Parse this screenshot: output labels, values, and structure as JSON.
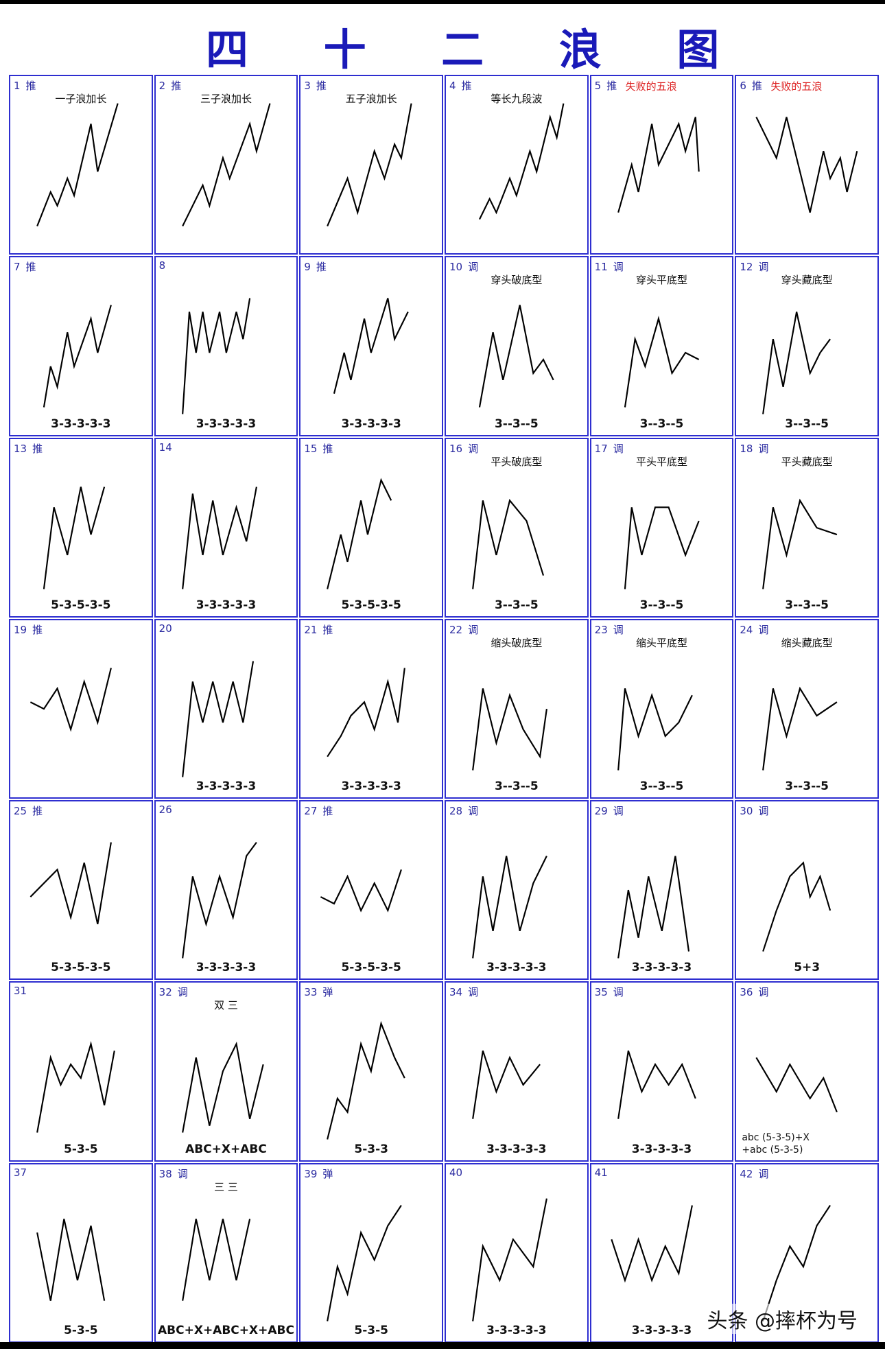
{
  "title": "四 十 二 浪 图",
  "watermark": "头条 @摔杯为号",
  "cells": [
    {
      "num": "1",
      "type": "推",
      "name": "一子浪加长",
      "cap": ""
    },
    {
      "num": "2",
      "type": "推",
      "name": "三子浪加长",
      "cap": ""
    },
    {
      "num": "3",
      "type": "推",
      "name": "五子浪加长",
      "cap": ""
    },
    {
      "num": "4",
      "type": "推",
      "name": "等长九段波",
      "cap": ""
    },
    {
      "num": "5",
      "type": "推",
      "name": "失败的五浪",
      "cap": ""
    },
    {
      "num": "6",
      "type": "推",
      "name": "失败的五浪",
      "cap": ""
    },
    {
      "num": "7",
      "type": "推",
      "name": "",
      "cap": "3-3-3-3-3"
    },
    {
      "num": "8",
      "type": "",
      "name": "",
      "cap": "3-3-3-3-3"
    },
    {
      "num": "9",
      "type": "推",
      "name": "",
      "cap": "3-3-3-3-3"
    },
    {
      "num": "10",
      "type": "调",
      "name": "穿头破底型",
      "cap": "3--3--5"
    },
    {
      "num": "11",
      "type": "调",
      "name": "穿头平底型",
      "cap": "3--3--5"
    },
    {
      "num": "12",
      "type": "调",
      "name": "穿头藏底型",
      "cap": "3--3--5"
    },
    {
      "num": "13",
      "type": "推",
      "name": "",
      "cap": "5-3-5-3-5"
    },
    {
      "num": "14",
      "type": "",
      "name": "",
      "cap": "3-3-3-3-3"
    },
    {
      "num": "15",
      "type": "推",
      "name": "",
      "cap": "5-3-5-3-5"
    },
    {
      "num": "16",
      "type": "调",
      "name": "平头破底型",
      "cap": "3--3--5"
    },
    {
      "num": "17",
      "type": "调",
      "name": "平头平底型",
      "cap": "3--3--5"
    },
    {
      "num": "18",
      "type": "调",
      "name": "平头藏底型",
      "cap": "3--3--5"
    },
    {
      "num": "19",
      "type": "推",
      "name": "",
      "cap": ""
    },
    {
      "num": "20",
      "type": "",
      "name": "",
      "cap": "3-3-3-3-3"
    },
    {
      "num": "21",
      "type": "推",
      "name": "",
      "cap": "3-3-3-3-3"
    },
    {
      "num": "22",
      "type": "调",
      "name": "缩头破底型",
      "cap": "3--3--5"
    },
    {
      "num": "23",
      "type": "调",
      "name": "缩头平底型",
      "cap": "3--3--5"
    },
    {
      "num": "24",
      "type": "调",
      "name": "缩头藏底型",
      "cap": "3--3--5"
    },
    {
      "num": "25",
      "type": "推",
      "name": "",
      "cap": "5-3-5-3-5"
    },
    {
      "num": "26",
      "type": "",
      "name": "",
      "cap": "3-3-3-3-3"
    },
    {
      "num": "27",
      "type": "推",
      "name": "",
      "cap": "5-3-5-3-5"
    },
    {
      "num": "28",
      "type": "调",
      "name": "",
      "cap": "3-3-3-3-3"
    },
    {
      "num": "29",
      "type": "调",
      "name": "",
      "cap": "3-3-3-3-3"
    },
    {
      "num": "30",
      "type": "调",
      "name": "",
      "cap": "5+3"
    },
    {
      "num": "31",
      "type": "",
      "name": "",
      "cap": "5-3-5"
    },
    {
      "num": "32",
      "type": "调",
      "name": "双 三",
      "cap": "ABC+X+ABC"
    },
    {
      "num": "33",
      "type": "弹",
      "name": "",
      "cap": "5-3-3"
    },
    {
      "num": "34",
      "type": "调",
      "name": "",
      "cap": "3-3-3-3-3"
    },
    {
      "num": "35",
      "type": "调",
      "name": "",
      "cap": "3-3-3-3-3"
    },
    {
      "num": "36",
      "type": "调",
      "name": "",
      "cap": "abc (5-3-5)+X\n +abc (5-3-5)"
    },
    {
      "num": "37",
      "type": "",
      "name": "",
      "cap": "5-3-5"
    },
    {
      "num": "38",
      "type": "调",
      "name": "三 三",
      "cap": "ABC+X+ABC+X+ABC"
    },
    {
      "num": "39",
      "type": "弹",
      "name": "",
      "cap": "5-3-5"
    },
    {
      "num": "40",
      "type": "",
      "name": "",
      "cap": "3-3-3-3-3"
    },
    {
      "num": "41",
      "type": "",
      "name": "",
      "cap": "3-3-3-3-3"
    },
    {
      "num": "42",
      "type": "调",
      "name": "",
      "cap": ""
    }
  ]
}
